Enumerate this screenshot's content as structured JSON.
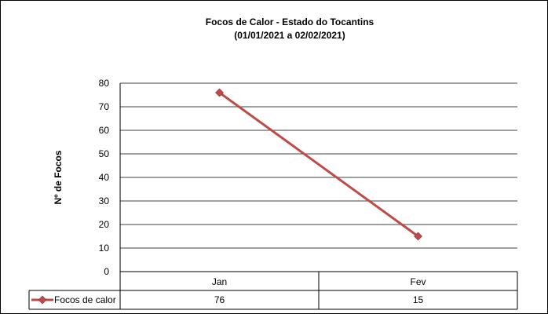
{
  "chart_data": {
    "type": "line",
    "title": "Focos de Calor - Estado do Tocantins",
    "subtitle": "(01/01/2021 a 02/02/2021)",
    "xlabel": "",
    "ylabel": "Nº de Focos",
    "ylim": [
      0,
      80
    ],
    "yticks": [
      "0",
      "10",
      "20",
      "30",
      "40",
      "50",
      "60",
      "70",
      "80"
    ],
    "grid": true,
    "categories": [
      "Jan",
      "Fev"
    ],
    "series": [
      {
        "name": "Focos de calor",
        "values": [
          76,
          15
        ],
        "color": "#be4b48"
      }
    ],
    "data_table": {
      "rows": [
        {
          "label": "Focos de calor",
          "cells": [
            "76",
            "15"
          ]
        }
      ]
    }
  }
}
